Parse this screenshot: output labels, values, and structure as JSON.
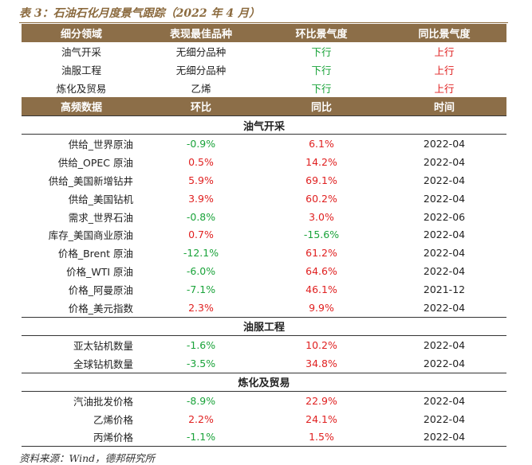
{
  "title": "表 3：石油石化月度景气跟踪（2022 年 4 月）",
  "summary": {
    "headers": [
      "细分领域",
      "表现最佳品种",
      "环比景气度",
      "同比景气度"
    ],
    "rows": [
      {
        "segment": "油气开采",
        "best": "无细分品种",
        "mom": "下行",
        "yoy": "上行"
      },
      {
        "segment": "油服工程",
        "best": "无细分品种",
        "mom": "下行",
        "yoy": "上行"
      },
      {
        "segment": "炼化及贸易",
        "best": "乙烯",
        "mom": "下行",
        "yoy": "上行"
      }
    ]
  },
  "detail": {
    "headers": [
      "高频数据",
      "环比",
      "同比",
      "时间"
    ],
    "sections": [
      {
        "name": "油气开采",
        "rows": [
          {
            "label": "供给_世界原油",
            "mom": "-0.9%",
            "yoy": "6.1%",
            "time": "2022-04"
          },
          {
            "label": "供给_OPEC 原油",
            "mom": "0.5%",
            "yoy": "14.2%",
            "time": "2022-04"
          },
          {
            "label": "供给_美国新增钻井",
            "mom": "5.9%",
            "yoy": "69.1%",
            "time": "2022-04"
          },
          {
            "label": "供给_美国钻机",
            "mom": "3.9%",
            "yoy": "60.2%",
            "time": "2022-04"
          },
          {
            "label": "需求_世界石油",
            "mom": "-0.8%",
            "yoy": "3.0%",
            "time": "2022-06"
          },
          {
            "label": "库存_美国商业原油",
            "mom": "0.7%",
            "yoy": "-15.6%",
            "time": "2022-04"
          },
          {
            "label": "价格_Brent 原油",
            "mom": "-12.1%",
            "yoy": "61.2%",
            "time": "2022-04"
          },
          {
            "label": "价格_WTI 原油",
            "mom": "-6.0%",
            "yoy": "64.6%",
            "time": "2022-04"
          },
          {
            "label": "价格_阿曼原油",
            "mom": "-7.1%",
            "yoy": "46.1%",
            "time": "2021-12"
          },
          {
            "label": "价格_美元指数",
            "mom": "2.3%",
            "yoy": "9.9%",
            "time": "2022-04"
          }
        ]
      },
      {
        "name": "油服工程",
        "rows": [
          {
            "label": "亚太钻机数量",
            "mom": "-1.6%",
            "yoy": "10.2%",
            "time": "2022-04"
          },
          {
            "label": "全球钻机数量",
            "mom": "-3.5%",
            "yoy": "34.8%",
            "time": "2022-04"
          }
        ]
      },
      {
        "name": "炼化及贸易",
        "rows": [
          {
            "label": "汽油批发价格",
            "mom": "-8.9%",
            "yoy": "22.9%",
            "time": "2022-04"
          },
          {
            "label": "乙烯价格",
            "mom": "2.2%",
            "yoy": "24.1%",
            "time": "2022-04"
          },
          {
            "label": "丙烯价格",
            "mom": "-1.1%",
            "yoy": "1.5%",
            "time": "2022-04"
          }
        ]
      }
    ]
  },
  "source": "资料来源：Wind，德邦研究所",
  "colors": {
    "header_bg": "#8c6e48",
    "up": "#e02020",
    "down": "#1aa33a",
    "title": "#8b6a3e"
  }
}
